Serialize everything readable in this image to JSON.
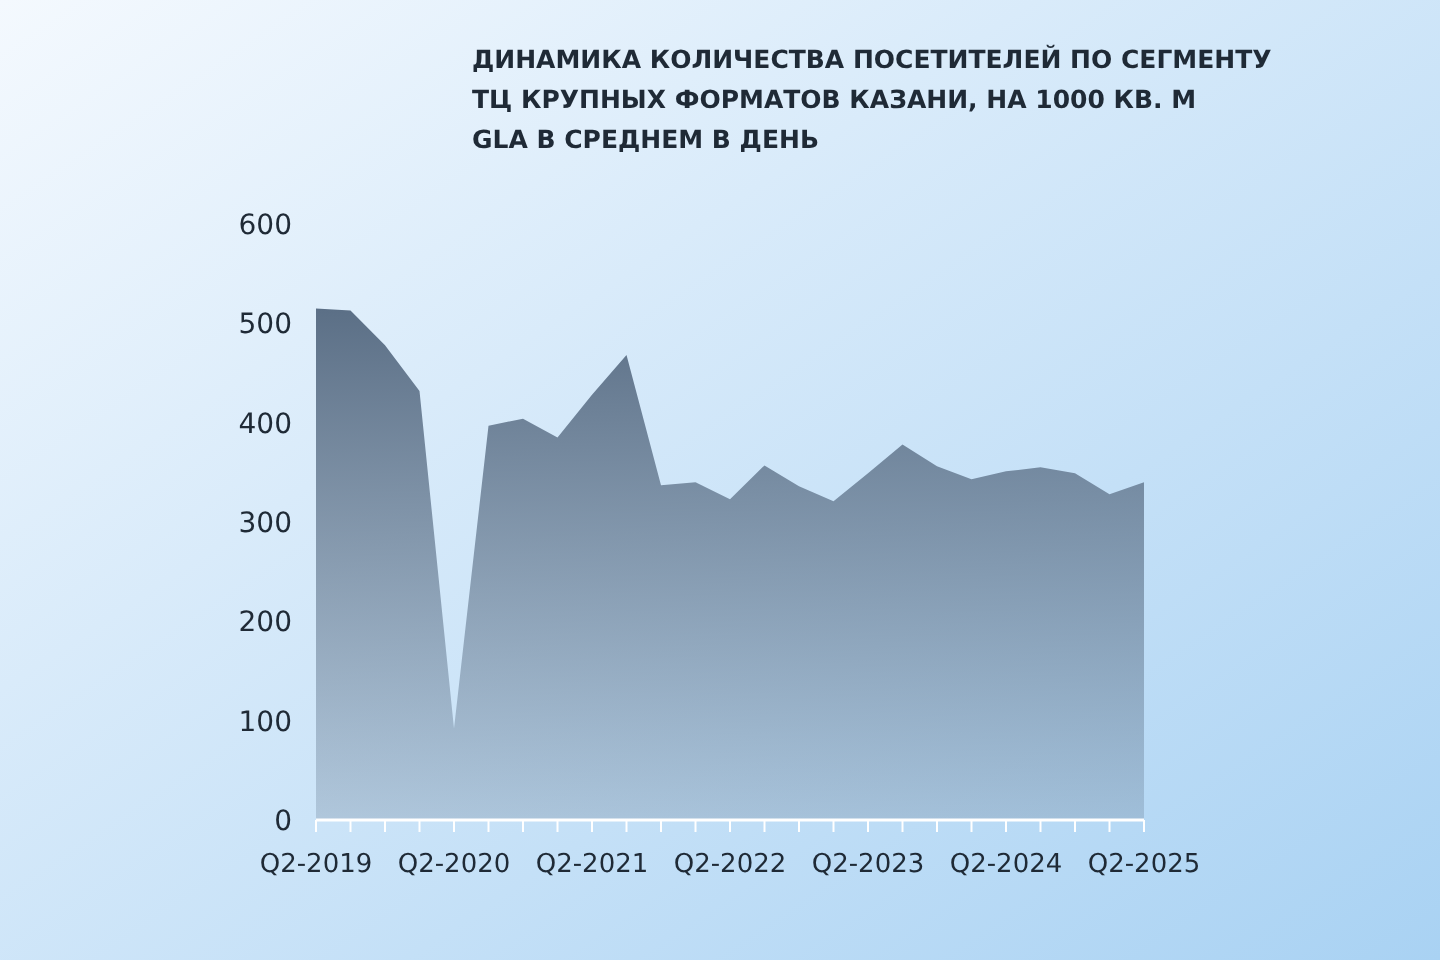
{
  "chart_data": {
    "type": "area",
    "title": "ДИНАМИКА КОЛИЧЕСТВА ПОСЕТИТЕЛЕЙ ПО СЕГМЕНТУ ТЦ КРУПНЫХ ФОРМАТОВ КАЗАНИ, НА 1000 КВ. М GLA В СРЕДНЕМ В ДЕНЬ",
    "categories": [
      "Q2-2019",
      null,
      null,
      null,
      "Q2-2020",
      null,
      null,
      null,
      "Q2-2021",
      null,
      null,
      null,
      "Q2-2022",
      null,
      null,
      null,
      "Q2-2023",
      null,
      null,
      null,
      "Q2-2024",
      null,
      null,
      null,
      "Q2-2025"
    ],
    "values": [
      515,
      513,
      478,
      432,
      92,
      397,
      404,
      385,
      428,
      468,
      337,
      340,
      323,
      357,
      336,
      321,
      349,
      378,
      356,
      343,
      351,
      355,
      349,
      328,
      340
    ],
    "color": "#5b6f86",
    "ylim": [
      0,
      600
    ],
    "yticks": [
      0,
      100,
      200,
      300,
      400,
      500,
      600
    ],
    "grid": false
  }
}
